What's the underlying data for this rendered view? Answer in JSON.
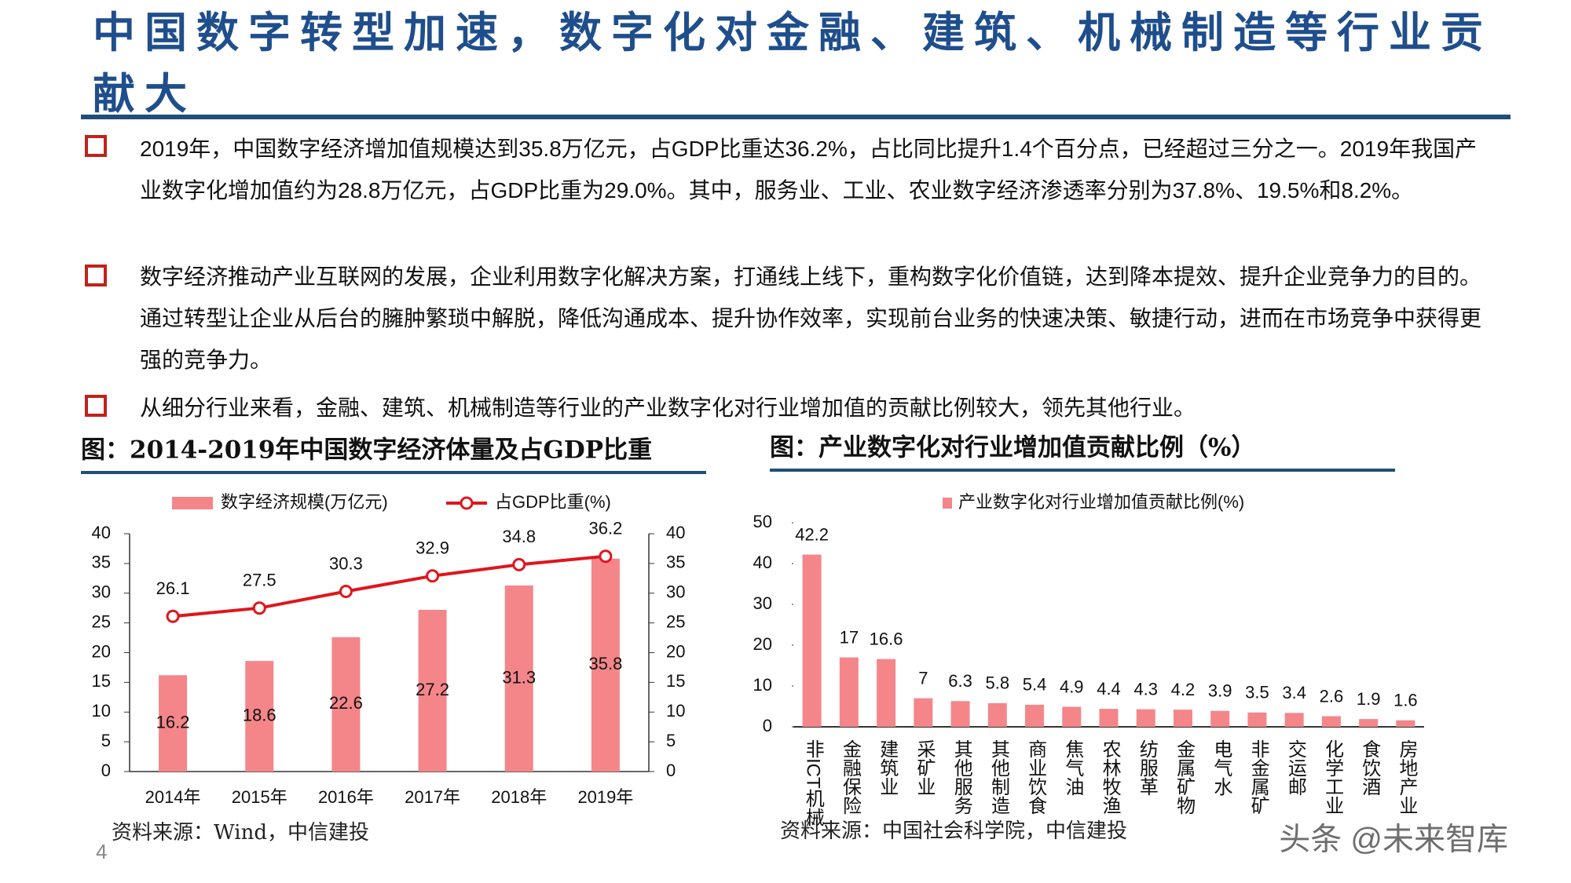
{
  "header": {
    "title": "中国数字转型加速，数字化对金融、建筑、机械制造等行业贡献大"
  },
  "bullets": [
    "2019年，中国数字经济增加值规模达到35.8万亿元，占GDP比重达36.2%，占比同比提升1.4个百分点，已经超过三分之一。2019年我国产业数字化增加值约为28.8万亿元，占GDP比重为29.0%。其中，服务业、工业、农业数字经济渗透率分别为37.8%、19.5%和8.2%。",
    "数字经济推动产业互联网的发展，企业利用数字化解决方案，打通线上线下，重构数字化价值链，达到降本提效、提升企业竞争力的目的。通过转型让企业从后台的臃肿繁琐中解脱，降低沟通成本、提升协作效率，实现前台业务的快速决策、敏捷行动，进而在市场竞争中获得更强的竞争力。",
    "从细分行业来看，金融、建筑、机械制造等行业的产业数字化对行业增加值的贡献比例较大，领先其他行业。"
  ],
  "chart_data": [
    {
      "type": "combo",
      "title": "图：2014-2019年中国数字经济体量及占GDP比重",
      "categories": [
        "2014年",
        "2015年",
        "2016年",
        "2017年",
        "2018年",
        "2019年"
      ],
      "series": [
        {
          "name": "数字经济规模(万亿元)",
          "type": "bar",
          "color": "#f4868a",
          "values": [
            16.2,
            18.6,
            22.6,
            27.2,
            31.3,
            35.8
          ]
        },
        {
          "name": "占GDP比重(%)",
          "type": "line",
          "axis": "y2",
          "color": "#e0151d",
          "values": [
            26.1,
            27.5,
            30.3,
            32.9,
            34.8,
            36.2
          ]
        }
      ],
      "ylim": [
        0,
        40
      ],
      "yticks": [
        0,
        5,
        10,
        15,
        20,
        25,
        30,
        35,
        40
      ],
      "y2lim": [
        0,
        40
      ],
      "y2ticks": [
        0,
        5,
        10,
        15,
        20,
        25,
        30,
        35,
        40
      ],
      "source": "资料来源：Wind，中信建投"
    },
    {
      "type": "bar",
      "title": "图：产业数字化对行业增加值贡献比例（%）",
      "categories": [
        "非ICT机械",
        "金融保险",
        "建筑业",
        "采矿业",
        "其他服务",
        "其他制造",
        "商业饮食",
        "焦气油",
        "农林牧渔",
        "纺服革",
        "金属矿物",
        "电气水",
        "非金属矿",
        "交运邮",
        "化学工业",
        "食饮酒",
        "房地产业"
      ],
      "series": [
        {
          "name": "产业数字化对行业增加值贡献比例(%)",
          "color": "#f4868a",
          "values": [
            42.2,
            17,
            16.6,
            7,
            6.3,
            5.8,
            5.4,
            4.9,
            4.4,
            4.3,
            4.2,
            3.9,
            3.5,
            3.4,
            2.6,
            1.9,
            1.6
          ]
        }
      ],
      "ylim": [
        0,
        50
      ],
      "yticks": [
        0,
        10,
        20,
        30,
        40,
        50
      ],
      "source": "资料来源：中国社会科学院，中信建投"
    }
  ],
  "page_number": "4",
  "watermark": "头条 @未来智库"
}
